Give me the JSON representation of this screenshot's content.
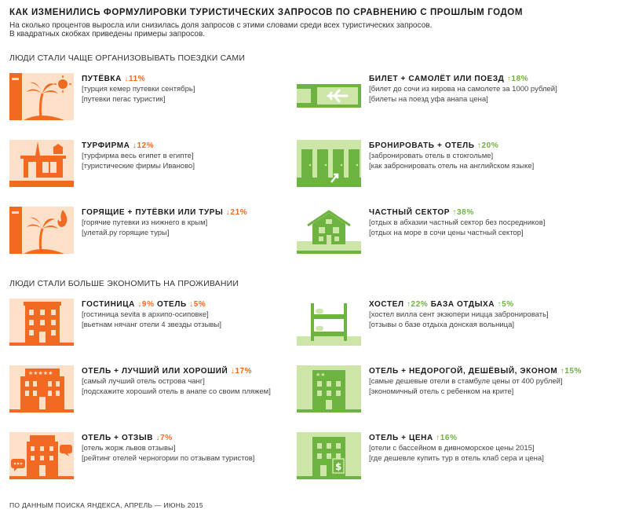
{
  "title": "КАК ИЗМЕНИЛИСЬ ФОРМУЛИРОВКИ ТУРИСТИЧЕСКИХ ЗАПРОСОВ ПО СРАВНЕНИЮ С ПРОШЛЫМ ГОДОМ",
  "subtitle_line1": "На сколько процентов выросла или снизилась доля запросов с этими словами среди всех туристических запросов.",
  "subtitle_line2": "В квадратных скобках приведены примеры запросов.",
  "colors": {
    "orange": "#f26a21",
    "green": "#6db33f",
    "light_orange": "#f9c9a0",
    "light_green": "#cde6a8"
  },
  "section1": "ЛЮДИ СТАЛИ ЧАЩЕ ОРГАНИЗОВЫВАТЬ ПОЕЗДКИ САМИ",
  "section2": "ЛЮДИ СТАЛИ БОЛЬШЕ ЭКОНОМИТЬ НА ПРОЖИВАНИИ",
  "footer": "ПО ДАННЫМ ПОИСКА ЯНДЕКСА, АПРЕЛЬ — ИЮНЬ 2015",
  "items": [
    {
      "icon": "palm-tree-icon",
      "label": "ПУТЁВКА",
      "pct": "↓11%",
      "ex1": "[турция кемер путевки сентябрь]",
      "ex2": "[путевки пегас туристик]"
    },
    {
      "icon": "ticket-plane-icon",
      "label": "БИЛЕТ + САМОЛЁТ ИЛИ ПОЕЗД",
      "pct": "↑18%",
      "ex1": "[билет до сочи из кирова на самолете за 1000 рублей]",
      "ex2": "[билеты на поезд уфа анапа цена]"
    },
    {
      "icon": "eiffel-building-icon",
      "label": "ТУРФИРМА",
      "pct": "↓12%",
      "ex1": "[турфирма весь египет в египте]",
      "ex2": "[туристические фирмы Иваново]"
    },
    {
      "icon": "doors-arrow-icon",
      "label": "БРОНИРОВАТЬ + ОТЕЛЬ",
      "pct": "↑20%",
      "ex1": "[забронировать отель в стокгольме]",
      "ex2": "[как забронировать отель на английском языке]"
    },
    {
      "icon": "palm-fire-icon",
      "label": "ГОРЯЩИЕ + ПУТЁВКИ ИЛИ ТУРЫ",
      "pct": "↓21%",
      "ex1": "[горячие путевки из нижнего в крым]",
      "ex2": "[улетай.ру горящие туры]"
    },
    {
      "icon": "house-icon",
      "label": "ЧАСТНЫЙ СЕКТОР",
      "pct": "↑38%",
      "ex1": "[отдых в абхазии частный сектор без посредников]",
      "ex2": "[отдых на море в сочи цены частный сектор]"
    },
    {
      "icon": "hotel-icon",
      "label": "ГОСТИНИЦА",
      "pct": "↓9%",
      "label2": "ОТЕЛЬ",
      "pct2": "↓5%",
      "ex1": "[гостиница sevita в архипо-осиповке]",
      "ex2": "[вьетнам нячанг отели 4 звезды отзывы]"
    },
    {
      "icon": "bunk-bed-icon",
      "label": "ХОСТЕЛ",
      "pct": "↑22%",
      "label2": "БАЗА ОТДЫХА",
      "pct2": "↑5%",
      "ex1": "[хостел вилла сент экзюпери ницца забронировать]",
      "ex2": "[отзывы о базе отдыха донская вольница]"
    },
    {
      "icon": "hotel-stars-icon",
      "label": "ОТЕЛЬ + ЛУЧШИЙ ИЛИ ХОРОШИЙ",
      "pct": "↓17%",
      "ex1": "[самый лучший отель острова чанг]",
      "ex2": "[подскажите хороший отель в анапе со своим пляжем]"
    },
    {
      "icon": "hotel-two-stars-icon",
      "label": "ОТЕЛЬ + НЕДОРОГОЙ, ДЕШЁВЫЙ, ЭКОНОМ",
      "pct": "↑15%",
      "ex1": "[самые дешевые отели в стамбуле цены от 400 рублей]",
      "ex2": "[экономичный отель с ребенком на крите]"
    },
    {
      "icon": "hotel-chat-icon",
      "label": "ОТЕЛЬ + ОТЗЫВ",
      "pct": "↓7%",
      "ex1": "[отель жорж львов отзывы]",
      "ex2": "[рейтинг отелей черногории по отзывам туристов]"
    },
    {
      "icon": "hotel-dollar-icon",
      "label": "ОТЕЛЬ + ЦЕНА",
      "pct": "↑16%",
      "ex1": "[отели с бассейном в дивноморское цены 2015]",
      "ex2": "[где дешевле купить тур в отель клаб сера и цена]"
    }
  ]
}
